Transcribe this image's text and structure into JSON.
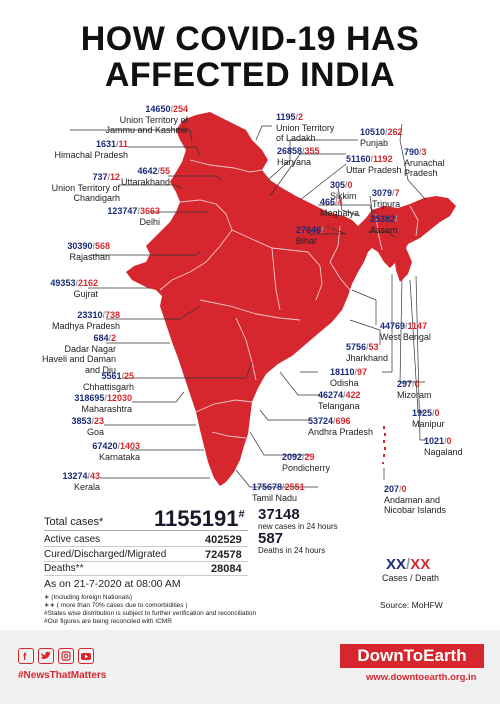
{
  "title_line1": "HOW COVID-19 HAS",
  "title_line2": "AFFECTED INDIA",
  "colors": {
    "map": "#d6272f",
    "cases": "#1a2a78",
    "deaths": "#d6272f"
  },
  "states": [
    {
      "key": "jk",
      "cases": "14650",
      "deaths": "254",
      "name1": "Union Territory of",
      "name2": "Jammu and Kashmir"
    },
    {
      "key": "hp",
      "cases": "1631",
      "deaths": "11",
      "name1": "Himachal Pradesh",
      "name2": ""
    },
    {
      "key": "ut",
      "cases": "4642",
      "deaths": "55",
      "name1": "Uttarakhand",
      "name2": ""
    },
    {
      "key": "ch",
      "cases": "737",
      "deaths": "12",
      "name1": "Union Territory of",
      "name2": "Chandigarh"
    },
    {
      "key": "dl",
      "cases": "123747",
      "deaths": "3663",
      "name1": "Delhi",
      "name2": ""
    },
    {
      "key": "rj",
      "cases": "30390",
      "deaths": "568",
      "name1": "Rajasthan",
      "name2": ""
    },
    {
      "key": "gj",
      "cases": "49353",
      "deaths": "2162",
      "name1": "Gujrat",
      "name2": ""
    },
    {
      "key": "mp",
      "cases": "23310",
      "deaths": "738",
      "name1": "Madhya Pradesh",
      "name2": ""
    },
    {
      "key": "dn",
      "cases": "684",
      "deaths": "2",
      "name1": "Dadar Nagar",
      "name2": "Haveli and Daman",
      "name3": "and Diu"
    },
    {
      "key": "cg",
      "cases": "5561",
      "deaths": "25",
      "name1": "Chhattisgarh",
      "name2": ""
    },
    {
      "key": "mh",
      "cases": "318695",
      "deaths": "12030",
      "name1": "Maharashtra",
      "name2": ""
    },
    {
      "key": "ga",
      "cases": "3853",
      "deaths": "23",
      "name1": "Goa",
      "name2": ""
    },
    {
      "key": "ka",
      "cases": "67420",
      "deaths": "1403",
      "name1": "Karnataka",
      "name2": ""
    },
    {
      "key": "kl",
      "cases": "13274",
      "deaths": "43",
      "name1": "Kerala",
      "name2": ""
    },
    {
      "key": "la",
      "cases": "1195",
      "deaths": "2",
      "name1": "Union Territory",
      "name2": "of Ladakh"
    },
    {
      "key": "pb",
      "cases": "10510",
      "deaths": "262",
      "name1": "Punjab",
      "name2": ""
    },
    {
      "key": "hr",
      "cases": "26858",
      "deaths": "355",
      "name1": "Haryana",
      "name2": ""
    },
    {
      "key": "up",
      "cases": "51160",
      "deaths": "1192",
      "name1": "Uttar Pradesh",
      "name2": ""
    },
    {
      "key": "ar",
      "cases": "790",
      "deaths": "3",
      "name1": "Arunachal",
      "name2": "Pradesh"
    },
    {
      "key": "sk",
      "cases": "305",
      "deaths": "0",
      "name1": "Sikkim",
      "name2": ""
    },
    {
      "key": "tr",
      "cases": "3079",
      "deaths": "7",
      "name1": "Tripura",
      "name2": ""
    },
    {
      "key": "ml",
      "cases": "466",
      "deaths": "4",
      "name1": "Meghalya",
      "name2": ""
    },
    {
      "key": "as",
      "cases": "25382",
      "deaths": "58",
      "name1": "Assam",
      "name2": ""
    },
    {
      "key": "br",
      "cases": "27646",
      "deaths": "217",
      "name1": "Bihar",
      "name2": ""
    },
    {
      "key": "wb",
      "cases": "44769",
      "deaths": "1147",
      "name1": "West Bengal",
      "name2": ""
    },
    {
      "key": "jh",
      "cases": "5756",
      "deaths": "53",
      "name1": "Jharkhand",
      "name2": ""
    },
    {
      "key": "od",
      "cases": "18110",
      "deaths": "97",
      "name1": "Odisha",
      "name2": ""
    },
    {
      "key": "mz",
      "cases": "297",
      "deaths": "0",
      "name1": "Mizoram",
      "name2": ""
    },
    {
      "key": "tg",
      "cases": "46274",
      "deaths": "422",
      "name1": "Telangana",
      "name2": ""
    },
    {
      "key": "mn",
      "cases": "1925",
      "deaths": "0",
      "name1": "Manipur",
      "name2": ""
    },
    {
      "key": "ap",
      "cases": "53724",
      "deaths": "696",
      "name1": "Andhra Pradesh",
      "name2": ""
    },
    {
      "key": "nl",
      "cases": "1021",
      "deaths": "0",
      "name1": "Nagaland",
      "name2": ""
    },
    {
      "key": "py",
      "cases": "2092",
      "deaths": "29",
      "name1": "Pondicherry",
      "name2": ""
    },
    {
      "key": "an",
      "cases": "207",
      "deaths": "0",
      "name1": "Andaman and",
      "name2": "Nicobar Islands"
    },
    {
      "key": "tn",
      "cases": "175678",
      "deaths": "2551",
      "name1": "Tamil Nadu",
      "name2": ""
    }
  ],
  "totals": {
    "total_label": "Total cases*",
    "total_value": "1155191",
    "total_mark": "#",
    "new_cases_value": "37148",
    "new_cases_label": "new cases in 24 hours",
    "deaths24_value": "587",
    "deaths24_label": "Deaths in 24 hours",
    "active_label": "Active cases",
    "active_value": "402529",
    "cured_label": "Cured/Discharged/Migrated",
    "cured_value": "724578",
    "deaths_label": "Deaths**",
    "deaths_value": "28084",
    "as_on": "As on 21-7-2020 at 08:00 AM"
  },
  "legend": {
    "cases": "XX",
    "sep": "/",
    "deaths": "XX",
    "label_cases": "Cases",
    "label_deaths": "Death"
  },
  "notes": [
    "∗ (Including foreign Nationals)",
    "∗∗ ( more than 70% cases due to comorbidities )",
    "#States wise distribution is subject to further verification and reconciliation",
    "#Our figures are being reconciled with ICMR"
  ],
  "source": "Source: MoHFW",
  "footer": {
    "hashtag": "#NewsThatMatters",
    "brand": "DownToEarth",
    "url": "www.downtoearth.org.in",
    "icons": [
      "facebook-icon",
      "twitter-icon",
      "instagram-icon",
      "youtube-icon"
    ]
  }
}
